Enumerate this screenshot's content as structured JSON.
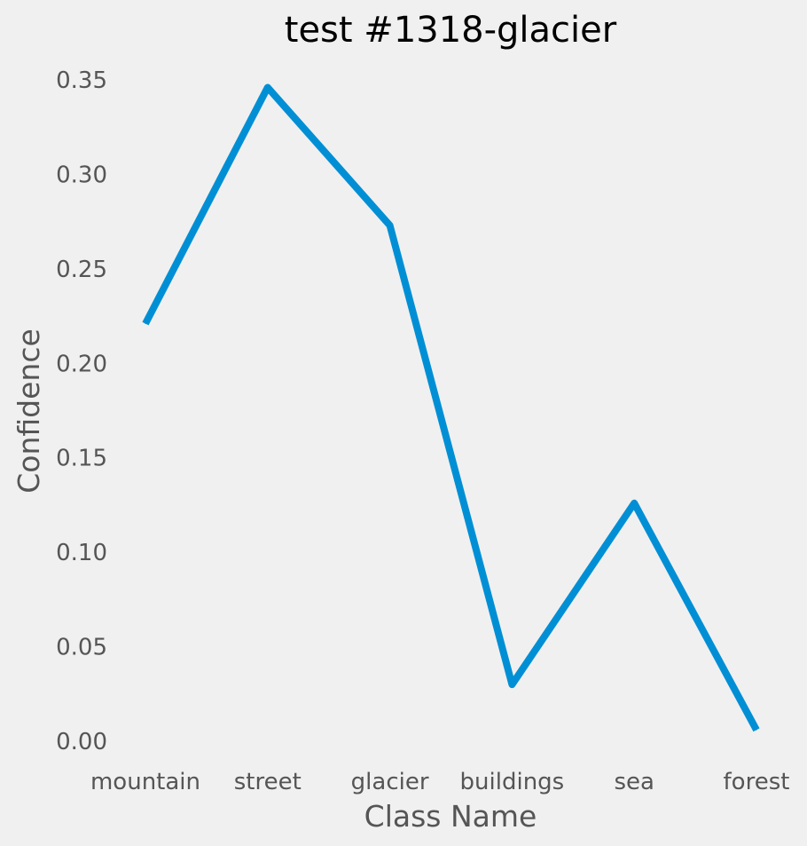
{
  "chart_data": {
    "type": "line",
    "title": "test #1318-glacier",
    "xlabel": "Class Name",
    "ylabel": "Confidence",
    "categories": [
      "mountain",
      "street",
      "glacier",
      "buildings",
      "sea",
      "forest"
    ],
    "series": [
      {
        "values": [
          0.221,
          0.346,
          0.273,
          0.03,
          0.126,
          0.006
        ]
      }
    ],
    "ylim": [
      0.0,
      0.35
    ],
    "yticks": [
      "0.00",
      "0.05",
      "0.10",
      "0.15",
      "0.20",
      "0.25",
      "0.30",
      "0.35"
    ],
    "grid": false,
    "line_color": "#008fd5",
    "background_color": "#f0f0f0"
  }
}
